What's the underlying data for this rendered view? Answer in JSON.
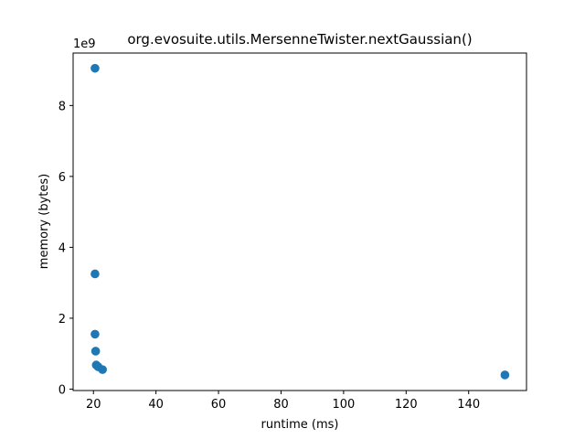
{
  "chart_data": {
    "type": "scatter",
    "title": "org.evosuite.utils.MersenneTwister.nextGaussian()",
    "xlabel": "runtime (ms)",
    "ylabel": "memory (bytes)",
    "y_offset_label": "1e9",
    "xlim": [
      13.5,
      158.5
    ],
    "ylim": [
      -0.04,
      9.48
    ],
    "y_scale_factor": 1000000000,
    "x_ticks": [
      20,
      40,
      60,
      80,
      100,
      120,
      140
    ],
    "y_ticks": [
      0,
      2,
      4,
      6,
      8
    ],
    "grid": false,
    "legend": "none",
    "marker_color": "#1f77b4",
    "points": [
      {
        "x": 20.5,
        "y": 9.05
      },
      {
        "x": 20.5,
        "y": 3.25
      },
      {
        "x": 20.5,
        "y": 1.55
      },
      {
        "x": 20.7,
        "y": 1.07
      },
      {
        "x": 20.9,
        "y": 0.68
      },
      {
        "x": 21.5,
        "y": 0.63
      },
      {
        "x": 22.9,
        "y": 0.55
      },
      {
        "x": 151.6,
        "y": 0.4
      }
    ]
  }
}
